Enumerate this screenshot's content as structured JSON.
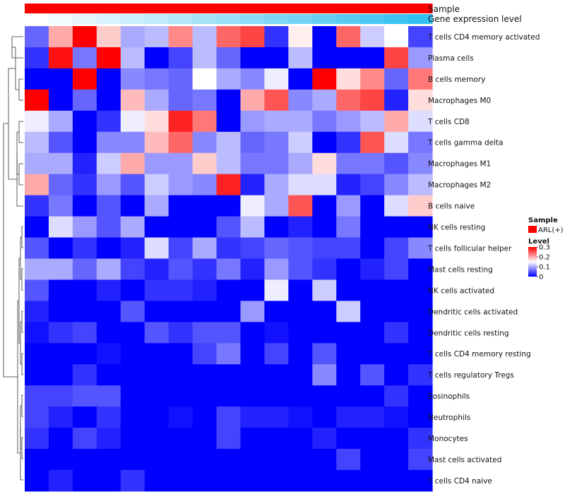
{
  "chart_data": {
    "type": "heatmap",
    "title": "",
    "column_annotations": [
      {
        "name": "Sample",
        "value": "ARL(+)",
        "color": "#ff0000"
      },
      {
        "name": "Gene expression level",
        "colors": [
          "#ffffff",
          "#f2fbfe",
          "#e5f7fd",
          "#d8f3fc",
          "#cbeffb",
          "#bfebfa",
          "#b2e7f9",
          "#a5e3f8",
          "#98dff7",
          "#8bdbf6",
          "#7ed7f5",
          "#72d3f4",
          "#65cff3",
          "#58cbf2",
          "#4bc7f1",
          "#3ec3f0",
          "#32c0f0"
        ]
      }
    ],
    "rows": [
      "T cells CD4 memory activated",
      "Plasma cells",
      "B cells memory",
      "Macrophages M0",
      "T cells CD8",
      "T cells gamma delta",
      "Macrophages M1",
      "Macrophages M2",
      "B cells naive",
      "NK cells resting",
      "T cells follicular helper",
      "Mast cells resting",
      "NK cells activated",
      "Dendritic cells activated",
      "Dendritic cells resting",
      "T cells CD4 memory resting",
      "T cells regulatory  Tregs",
      "Eosinophils",
      "Neutrophils",
      "Monocytes",
      "Mast cells activated",
      "T cells CD4 naive"
    ],
    "n_columns": 17,
    "values": [
      [
        0.06,
        0.2,
        0.3,
        0.18,
        0.1,
        0.11,
        0.22,
        0.11,
        0.24,
        0.26,
        0.03,
        0.16,
        0.0,
        0.24,
        0.12,
        0.15,
        0.04
      ],
      [
        0.03,
        0.29,
        0.07,
        0.3,
        0.11,
        0.0,
        0.04,
        0.11,
        0.06,
        0.0,
        0.0,
        0.11,
        0.0,
        0.0,
        0.0,
        0.26,
        0.09
      ],
      [
        0.0,
        0.0,
        0.3,
        0.0,
        0.08,
        0.07,
        0.06,
        0.15,
        0.1,
        0.08,
        0.14,
        0.0,
        0.3,
        0.17,
        0.22,
        0.06,
        0.23
      ],
      [
        0.3,
        0.0,
        0.06,
        0.0,
        0.19,
        0.1,
        0.06,
        0.07,
        0.0,
        0.2,
        0.25,
        0.08,
        0.1,
        0.24,
        0.26,
        0.02,
        0.17
      ],
      [
        0.14,
        0.1,
        0.0,
        0.03,
        0.14,
        0.17,
        0.28,
        0.23,
        0.0,
        0.09,
        0.1,
        0.1,
        0.07,
        0.09,
        0.11,
        0.2,
        0.13
      ],
      [
        0.11,
        0.05,
        0.0,
        0.08,
        0.08,
        0.19,
        0.24,
        0.08,
        0.11,
        0.06,
        0.07,
        0.12,
        0.0,
        0.03,
        0.25,
        0.13,
        0.07
      ],
      [
        0.1,
        0.1,
        0.02,
        0.12,
        0.2,
        0.09,
        0.09,
        0.18,
        0.11,
        0.07,
        0.07,
        0.1,
        0.17,
        0.07,
        0.07,
        0.05,
        0.08
      ],
      [
        0.2,
        0.06,
        0.03,
        0.09,
        0.05,
        0.12,
        0.09,
        0.08,
        0.28,
        0.02,
        0.1,
        0.13,
        0.13,
        0.02,
        0.04,
        0.08,
        0.11
      ],
      [
        0.03,
        0.07,
        0.0,
        0.05,
        0.0,
        0.1,
        0.0,
        0.0,
        0.0,
        0.14,
        0.1,
        0.25,
        0.0,
        0.09,
        0.0,
        0.13,
        0.18
      ],
      [
        0.0,
        0.13,
        0.09,
        0.05,
        0.1,
        0.0,
        0.0,
        0.0,
        0.05,
        0.11,
        0.0,
        0.02,
        0.0,
        0.07,
        0.0,
        0.0,
        0.0
      ],
      [
        0.05,
        0.0,
        0.03,
        0.0,
        0.02,
        0.13,
        0.04,
        0.1,
        0.03,
        0.04,
        0.06,
        0.05,
        0.04,
        0.04,
        0.0,
        0.04,
        0.08
      ],
      [
        0.1,
        0.1,
        0.06,
        0.1,
        0.04,
        0.02,
        0.05,
        0.03,
        0.07,
        0.02,
        0.09,
        0.05,
        0.03,
        0.0,
        0.02,
        0.04,
        0.0
      ],
      [
        0.05,
        0.0,
        0.0,
        0.02,
        0.0,
        0.03,
        0.03,
        0.02,
        0.0,
        0.0,
        0.14,
        0.0,
        0.12,
        0.0,
        0.0,
        0.0,
        0.0
      ],
      [
        0.02,
        0.0,
        0.0,
        0.0,
        0.05,
        0.0,
        0.0,
        0.0,
        0.0,
        0.09,
        0.0,
        0.0,
        0.0,
        0.12,
        0.0,
        0.0,
        0.0
      ],
      [
        0.01,
        0.03,
        0.04,
        0.0,
        0.0,
        0.05,
        0.03,
        0.05,
        0.05,
        0.0,
        0.01,
        0.0,
        0.0,
        0.0,
        0.0,
        0.03,
        0.0
      ],
      [
        0.0,
        0.0,
        0.0,
        0.01,
        0.0,
        0.0,
        0.0,
        0.04,
        0.07,
        0.0,
        0.04,
        0.0,
        0.05,
        0.0,
        0.0,
        0.0,
        0.0
      ],
      [
        0.0,
        0.0,
        0.03,
        0.0,
        0.0,
        0.0,
        0.0,
        0.0,
        0.0,
        0.0,
        0.0,
        0.0,
        0.08,
        0.0,
        0.05,
        0.0,
        0.03
      ],
      [
        0.04,
        0.04,
        0.05,
        0.05,
        0.0,
        0.0,
        0.0,
        0.0,
        0.0,
        0.0,
        0.0,
        0.0,
        0.0,
        0.0,
        0.0,
        0.03,
        0.0
      ],
      [
        0.04,
        0.02,
        0.0,
        0.03,
        0.0,
        0.0,
        0.01,
        0.0,
        0.04,
        0.02,
        0.02,
        0.01,
        0.0,
        0.02,
        0.02,
        0.01,
        0.0
      ],
      [
        0.03,
        0.0,
        0.04,
        0.02,
        0.0,
        0.0,
        0.0,
        0.0,
        0.04,
        0.0,
        0.0,
        0.0,
        0.02,
        0.0,
        0.0,
        0.0,
        0.03
      ],
      [
        0.0,
        0.0,
        0.0,
        0.0,
        0.0,
        0.0,
        0.0,
        0.0,
        0.0,
        0.0,
        0.0,
        0.0,
        0.0,
        0.04,
        0.0,
        0.0,
        0.04
      ],
      [
        0.0,
        0.02,
        0.0,
        0.0,
        0.03,
        0.0,
        0.0,
        0.0,
        0.0,
        0.0,
        0.0,
        0.0,
        0.0,
        0.0,
        0.0,
        0.0,
        0.0
      ]
    ],
    "color_scale": {
      "min": 0,
      "mid": 0.15,
      "max": 0.3,
      "low": "#0000ff",
      "midcolor": "#ffffff",
      "high": "#ff0000"
    },
    "legend": {
      "sample_title": "Sample",
      "sample_entry": "ARL(+)",
      "level_title": "Level",
      "ticks": [
        {
          "label": "0.3",
          "value": 0.3
        },
        {
          "label": "0.2",
          "value": 0.2
        },
        {
          "label": "0.1",
          "value": 0.1
        },
        {
          "label": "0",
          "value": 0
        }
      ]
    }
  }
}
